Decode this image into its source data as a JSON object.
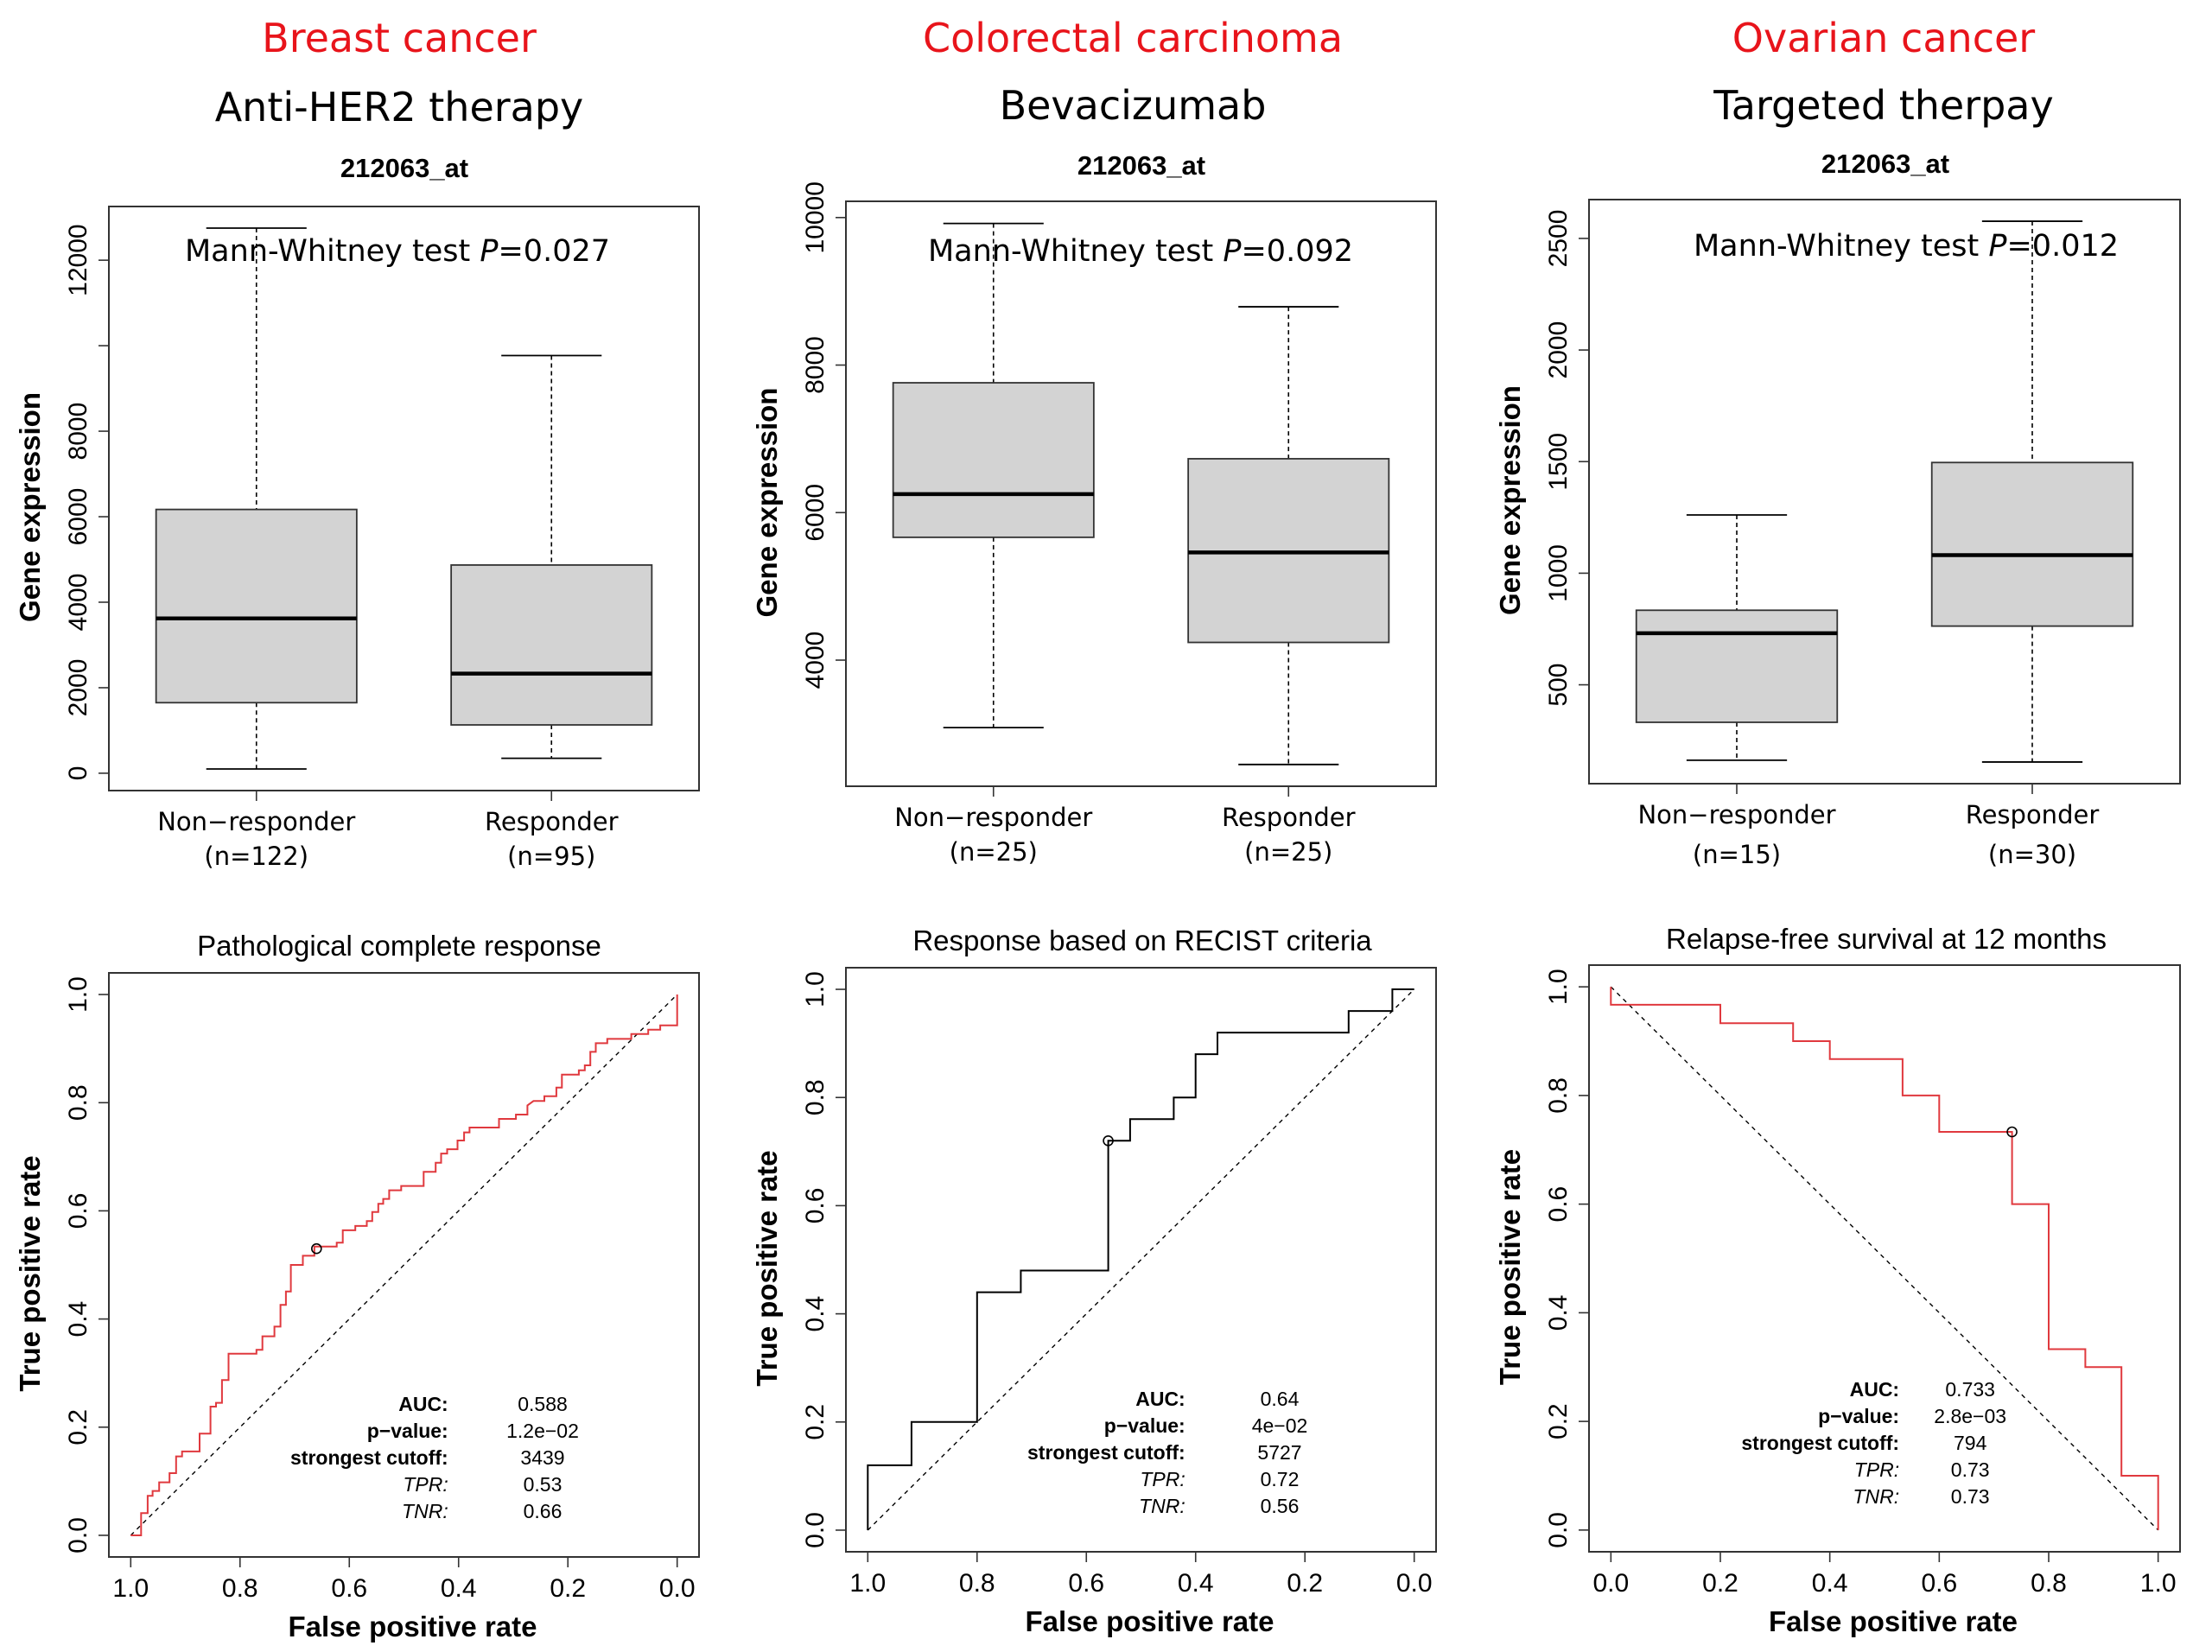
{
  "panels": [
    {
      "cancer_type": "Breast cancer",
      "therapy": "Anti-HER2 therapy",
      "probe": "212063_at",
      "test_label": "Mann-Whitney test",
      "p_label": "P",
      "p_value": "=0.027",
      "roc_title": "Pathological complete response",
      "stats": [
        {
          "label": "AUC:",
          "value": "0.588",
          "italic": false
        },
        {
          "label": "p−value:",
          "value": "1.2e−02",
          "italic": false
        },
        {
          "label": "strongest cutoff:",
          "value": "3439",
          "italic": false
        },
        {
          "label": "TPR:",
          "value": "0.53",
          "italic": true
        },
        {
          "label": "TNR:",
          "value": "0.66",
          "italic": true
        }
      ]
    },
    {
      "cancer_type": "Colorectal carcinoma",
      "therapy": "Bevacizumab",
      "probe": "212063_at",
      "test_label": "Mann-Whitney test",
      "p_label": "P",
      "p_value": "=0.092",
      "roc_title": "Response based on RECIST criteria",
      "stats": [
        {
          "label": "AUC:",
          "value": "0.64",
          "italic": false
        },
        {
          "label": "p−value:",
          "value": "4e−02",
          "italic": false
        },
        {
          "label": "strongest cutoff:",
          "value": "5727",
          "italic": false
        },
        {
          "label": "TPR:",
          "value": "0.72",
          "italic": true
        },
        {
          "label": "TNR:",
          "value": "0.56",
          "italic": true
        }
      ]
    },
    {
      "cancer_type": "Ovarian cancer",
      "therapy": "Targeted therpay",
      "probe": "212063_at",
      "test_label": "Mann-Whitney test",
      "p_label": "P",
      "p_value": "=0.012",
      "roc_title": "Relapse-free survival at 12 months",
      "stats": [
        {
          "label": "AUC:",
          "value": "0.733",
          "italic": false
        },
        {
          "label": "p−value:",
          "value": "2.8e−03",
          "italic": false
        },
        {
          "label": "strongest cutoff:",
          "value": "794",
          "italic": false
        },
        {
          "label": "TPR:",
          "value": "0.73",
          "italic": true
        },
        {
          "label": "TNR:",
          "value": "0.73",
          "italic": true
        }
      ]
    }
  ],
  "colors": {
    "cancer_title": "#e8141b",
    "box_fill": "#d3d3d3",
    "roc_red": "#e0393e",
    "roc_black": "#000000"
  },
  "chart_data": [
    {
      "type": "box",
      "title": "212063_at",
      "ylabel": "Gene expression",
      "categories": [
        "Non−responder",
        "Responder"
      ],
      "category_n": [
        "(n=122)",
        "(n=95)"
      ],
      "yticks": [
        0,
        2000,
        4000,
        6000,
        8000,
        10000,
        12000
      ],
      "ytick_labels": [
        "0",
        "2000",
        "4000",
        "6000",
        "8000",
        "",
        "12000"
      ],
      "ylim": [
        -406,
        13256
      ],
      "boxes": [
        {
          "whisker_low": 100,
          "q1": 1650,
          "median": 3620,
          "q3": 6170,
          "whisker_high": 12750
        },
        {
          "whisker_low": 350,
          "q1": 1130,
          "median": 2330,
          "q3": 4870,
          "whisker_high": 9770
        }
      ],
      "annotation": "Mann-Whitney test P=0.027"
    },
    {
      "type": "box",
      "title": "212063_at",
      "ylabel": "Gene expression",
      "categories": [
        "Non−responder",
        "Responder"
      ],
      "category_n": [
        "(n=25)",
        "(n=25)"
      ],
      "yticks": [
        4000,
        6000,
        8000,
        10000
      ],
      "ytick_labels": [
        "4000",
        "6000",
        "8000",
        "10000"
      ],
      "ylim": [
        2290,
        10220
      ],
      "boxes": [
        {
          "whisker_low": 3085,
          "q1": 5665,
          "median": 6250,
          "q3": 7760,
          "whisker_high": 9920
        },
        {
          "whisker_low": 2585,
          "q1": 4240,
          "median": 5460,
          "q3": 6730,
          "whisker_high": 8790
        }
      ],
      "annotation": "Mann-Whitney test P=0.092"
    },
    {
      "type": "box",
      "title": "212063_at",
      "ylabel": "Gene expression",
      "categories": [
        "Non−responder",
        "Responder"
      ],
      "category_n": [
        "(n=15)",
        "(n=30)"
      ],
      "yticks": [
        500,
        1000,
        1500,
        2000,
        2500
      ],
      "ytick_labels": [
        "500",
        "1000",
        "1500",
        "2000",
        "2500"
      ],
      "ylim": [
        57,
        2674
      ],
      "boxes": [
        {
          "whisker_low": 162,
          "q1": 332,
          "median": 731,
          "q3": 834,
          "whisker_high": 1261
        },
        {
          "whisker_low": 154,
          "q1": 763,
          "median": 1081,
          "q3": 1496,
          "whisker_high": 2577
        }
      ],
      "annotation": "Mann-Whitney test P=0.012"
    },
    {
      "type": "line",
      "title": "Pathological complete response",
      "xlabel": "False positive rate",
      "ylabel": "True positive rate",
      "xlim": [
        1.04,
        -0.04
      ],
      "ylim": [
        -0.04,
        1.04
      ],
      "xticks": [
        1.0,
        0.8,
        0.6,
        0.4,
        0.2,
        0.0
      ],
      "xtick_labels": [
        "1.0",
        "0.8",
        "0.6",
        "0.4",
        "0.2",
        "0.0"
      ],
      "yticks": [
        0.0,
        0.2,
        0.4,
        0.6,
        0.8,
        1.0
      ],
      "ytick_labels": [
        "0.0",
        "0.2",
        "0.4",
        "0.6",
        "0.8",
        "1.0"
      ],
      "line_color": "red",
      "diagonal": [
        [
          1.0,
          0.0
        ],
        [
          0.0,
          1.0
        ]
      ],
      "cutoff_point": [
        0.66,
        0.53
      ],
      "steps": [
        [
          1.0,
          0.0
        ],
        [
          0.981,
          0.0
        ],
        [
          0.981,
          0.041
        ],
        [
          0.969,
          0.041
        ],
        [
          0.969,
          0.073
        ],
        [
          0.96,
          0.073
        ],
        [
          0.96,
          0.082
        ],
        [
          0.948,
          0.082
        ],
        [
          0.948,
          0.098
        ],
        [
          0.929,
          0.098
        ],
        [
          0.929,
          0.115
        ],
        [
          0.917,
          0.115
        ],
        [
          0.917,
          0.146
        ],
        [
          0.906,
          0.146
        ],
        [
          0.906,
          0.155
        ],
        [
          0.874,
          0.155
        ],
        [
          0.874,
          0.188
        ],
        [
          0.854,
          0.188
        ],
        [
          0.854,
          0.238
        ],
        [
          0.844,
          0.238
        ],
        [
          0.844,
          0.245
        ],
        [
          0.833,
          0.245
        ],
        [
          0.833,
          0.287
        ],
        [
          0.821,
          0.287
        ],
        [
          0.821,
          0.336
        ],
        [
          0.77,
          0.336
        ],
        [
          0.77,
          0.343
        ],
        [
          0.759,
          0.343
        ],
        [
          0.759,
          0.368
        ],
        [
          0.737,
          0.368
        ],
        [
          0.737,
          0.386
        ],
        [
          0.726,
          0.386
        ],
        [
          0.726,
          0.426
        ],
        [
          0.716,
          0.426
        ],
        [
          0.716,
          0.451
        ],
        [
          0.707,
          0.451
        ],
        [
          0.707,
          0.5
        ],
        [
          0.685,
          0.5
        ],
        [
          0.685,
          0.517
        ],
        [
          0.664,
          0.517
        ],
        [
          0.664,
          0.534
        ],
        [
          0.623,
          0.534
        ],
        [
          0.623,
          0.541
        ],
        [
          0.612,
          0.541
        ],
        [
          0.612,
          0.564
        ],
        [
          0.589,
          0.564
        ],
        [
          0.589,
          0.572
        ],
        [
          0.568,
          0.572
        ],
        [
          0.568,
          0.581
        ],
        [
          0.558,
          0.581
        ],
        [
          0.558,
          0.598
        ],
        [
          0.547,
          0.598
        ],
        [
          0.547,
          0.613
        ],
        [
          0.538,
          0.613
        ],
        [
          0.538,
          0.622
        ],
        [
          0.527,
          0.622
        ],
        [
          0.527,
          0.638
        ],
        [
          0.505,
          0.638
        ],
        [
          0.505,
          0.646
        ],
        [
          0.464,
          0.646
        ],
        [
          0.464,
          0.672
        ],
        [
          0.442,
          0.672
        ],
        [
          0.442,
          0.689
        ],
        [
          0.432,
          0.689
        ],
        [
          0.432,
          0.706
        ],
        [
          0.421,
          0.706
        ],
        [
          0.421,
          0.714
        ],
        [
          0.402,
          0.714
        ],
        [
          0.402,
          0.73
        ],
        [
          0.39,
          0.73
        ],
        [
          0.39,
          0.745
        ],
        [
          0.38,
          0.745
        ],
        [
          0.38,
          0.754
        ],
        [
          0.326,
          0.754
        ],
        [
          0.326,
          0.77
        ],
        [
          0.295,
          0.77
        ],
        [
          0.295,
          0.778
        ],
        [
          0.274,
          0.778
        ],
        [
          0.274,
          0.795
        ],
        [
          0.263,
          0.803
        ],
        [
          0.243,
          0.803
        ],
        [
          0.243,
          0.812
        ],
        [
          0.221,
          0.812
        ],
        [
          0.221,
          0.828
        ],
        [
          0.211,
          0.828
        ],
        [
          0.211,
          0.852
        ],
        [
          0.18,
          0.852
        ],
        [
          0.18,
          0.86
        ],
        [
          0.169,
          0.86
        ],
        [
          0.169,
          0.869
        ],
        [
          0.159,
          0.869
        ],
        [
          0.159,
          0.894
        ],
        [
          0.149,
          0.894
        ],
        [
          0.149,
          0.91
        ],
        [
          0.128,
          0.91
        ],
        [
          0.128,
          0.918
        ],
        [
          0.084,
          0.918
        ],
        [
          0.084,
          0.927
        ],
        [
          0.053,
          0.927
        ],
        [
          0.053,
          0.935
        ],
        [
          0.031,
          0.935
        ],
        [
          0.031,
          0.943
        ],
        [
          0.0,
          0.943
        ],
        [
          0.0,
          1.0
        ]
      ]
    },
    {
      "type": "line",
      "title": "Response based on RECIST criteria",
      "xlabel": "False positive rate",
      "ylabel": "True positive rate",
      "xlim": [
        1.04,
        -0.04
      ],
      "ylim": [
        -0.04,
        1.04
      ],
      "xticks": [
        1.0,
        0.8,
        0.6,
        0.4,
        0.2,
        0.0
      ],
      "xtick_labels": [
        "1.0",
        "0.8",
        "0.6",
        "0.4",
        "0.2",
        "0.0"
      ],
      "yticks": [
        0.0,
        0.2,
        0.4,
        0.6,
        0.8,
        1.0
      ],
      "ytick_labels": [
        "0.0",
        "0.2",
        "0.4",
        "0.6",
        "0.8",
        "1.0"
      ],
      "line_color": "black",
      "diagonal": [
        [
          1.0,
          0.0
        ],
        [
          0.0,
          1.0
        ]
      ],
      "cutoff_point": [
        0.56,
        0.72
      ],
      "steps": [
        [
          1.0,
          0.0
        ],
        [
          1.0,
          0.12
        ],
        [
          0.92,
          0.12
        ],
        [
          0.92,
          0.2
        ],
        [
          0.8,
          0.2
        ],
        [
          0.8,
          0.44
        ],
        [
          0.72,
          0.44
        ],
        [
          0.72,
          0.48
        ],
        [
          0.56,
          0.48
        ],
        [
          0.56,
          0.72
        ],
        [
          0.52,
          0.72
        ],
        [
          0.52,
          0.76
        ],
        [
          0.44,
          0.76
        ],
        [
          0.44,
          0.8
        ],
        [
          0.4,
          0.8
        ],
        [
          0.4,
          0.88
        ],
        [
          0.36,
          0.88
        ],
        [
          0.36,
          0.92
        ],
        [
          0.12,
          0.92
        ],
        [
          0.12,
          0.96
        ],
        [
          0.04,
          0.96
        ],
        [
          0.04,
          1.0
        ],
        [
          0.0,
          1.0
        ]
      ]
    },
    {
      "type": "line",
      "title": "Relapse-free survival at 12 months",
      "xlabel": "False positive rate",
      "ylabel": "True positive rate",
      "xlim": [
        -0.04,
        1.04
      ],
      "ylim": [
        -0.04,
        1.04
      ],
      "xticks": [
        0.0,
        0.2,
        0.4,
        0.6,
        0.8,
        1.0
      ],
      "xtick_labels": [
        "0.0",
        "0.2",
        "0.4",
        "0.6",
        "0.8",
        "1.0"
      ],
      "yticks": [
        0.0,
        0.2,
        0.4,
        0.6,
        0.8,
        1.0
      ],
      "ytick_labels": [
        "0.0",
        "0.2",
        "0.4",
        "0.6",
        "0.8",
        "1.0"
      ],
      "line_color": "red",
      "diagonal": [
        [
          0.0,
          1.0
        ],
        [
          1.0,
          0.0
        ]
      ],
      "cutoff_point": [
        0.733,
        0.733
      ],
      "steps": [
        [
          0.0,
          1.0
        ],
        [
          0.0,
          0.967
        ],
        [
          0.2,
          0.967
        ],
        [
          0.2,
          0.933
        ],
        [
          0.333,
          0.933
        ],
        [
          0.333,
          0.9
        ],
        [
          0.4,
          0.9
        ],
        [
          0.4,
          0.867
        ],
        [
          0.533,
          0.867
        ],
        [
          0.533,
          0.8
        ],
        [
          0.6,
          0.8
        ],
        [
          0.6,
          0.733
        ],
        [
          0.733,
          0.733
        ],
        [
          0.733,
          0.6
        ],
        [
          0.8,
          0.6
        ],
        [
          0.8,
          0.333
        ],
        [
          0.867,
          0.333
        ],
        [
          0.867,
          0.3
        ],
        [
          0.933,
          0.3
        ],
        [
          0.933,
          0.1
        ],
        [
          1.0,
          0.1
        ],
        [
          1.0,
          0.0
        ]
      ]
    }
  ]
}
